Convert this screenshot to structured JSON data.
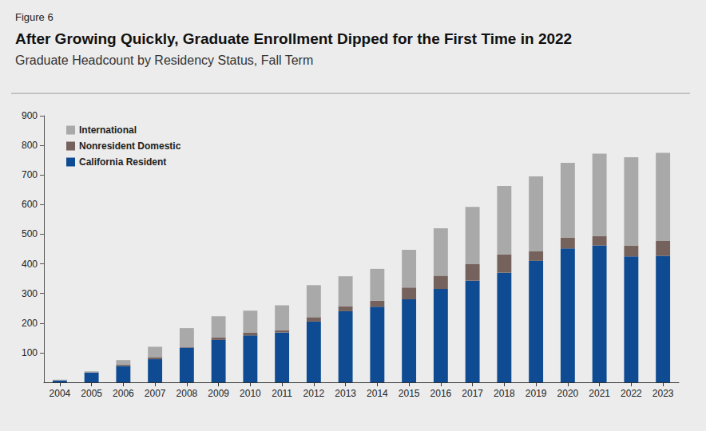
{
  "chart_data": {
    "type": "bar",
    "figure_label": "Figure 6",
    "title": "After Growing Quickly, Graduate Enrollment Dipped for the First Time in 2022",
    "subtitle": "Graduate Headcount by Residency Status, Fall Term",
    "categories": [
      "2004",
      "2005",
      "2006",
      "2007",
      "2008",
      "2009",
      "2010",
      "2011",
      "2012",
      "2013",
      "2014",
      "2015",
      "2016",
      "2017",
      "2018",
      "2019",
      "2020",
      "2021",
      "2022",
      "2023"
    ],
    "series": [
      {
        "name": "California Resident",
        "color": "#0e4b92",
        "values": [
          7,
          33,
          55,
          78,
          117,
          143,
          158,
          168,
          205,
          240,
          255,
          280,
          315,
          343,
          370,
          410,
          452,
          462,
          425,
          427
        ]
      },
      {
        "name": "Nonresident Domestic",
        "color": "#76625c",
        "values": [
          0,
          1,
          5,
          7,
          3,
          8,
          9,
          8,
          15,
          17,
          20,
          40,
          45,
          57,
          62,
          32,
          37,
          32,
          37,
          50
        ]
      },
      {
        "name": "International",
        "color": "#a9a9a9",
        "values": [
          2,
          3,
          15,
          35,
          63,
          72,
          75,
          84,
          108,
          101,
          108,
          127,
          160,
          192,
          231,
          253,
          252,
          278,
          298,
          298
        ]
      }
    ],
    "ylim": [
      0,
      900
    ],
    "yticks": [
      100,
      200,
      300,
      400,
      500,
      600,
      700,
      800,
      900
    ],
    "stacked": true,
    "grid": false,
    "legend": "top-left"
  }
}
